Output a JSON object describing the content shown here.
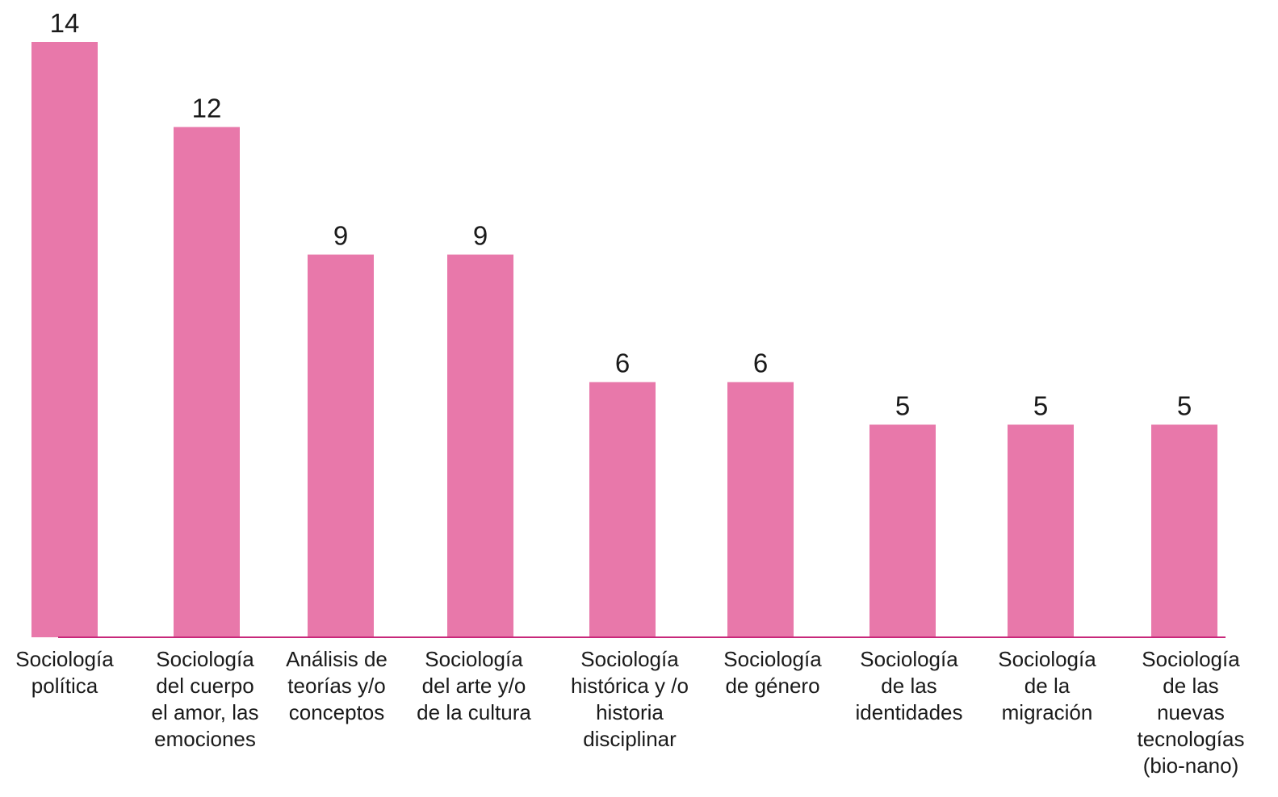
{
  "chart_data": {
    "type": "bar",
    "title": "",
    "xlabel": "",
    "ylabel": "",
    "ylim": [
      0,
      14
    ],
    "grid": false,
    "legend": "none",
    "bar_color": "#e878aa",
    "axis_color": "#c8287a",
    "categories": [
      [
        "Sociología",
        "política"
      ],
      [
        "Sociología",
        "del cuerpo",
        "el amor, las",
        "emociones"
      ],
      [
        "Análisis de",
        "teorías y/o",
        "conceptos"
      ],
      [
        "Sociología",
        "del arte y/o",
        "de la cultura"
      ],
      [
        "Sociología",
        "histórica y /o",
        "historia",
        "disciplinar"
      ],
      [
        "Sociología",
        "de género"
      ],
      [
        "Sociología",
        "de las",
        "identidades"
      ],
      [
        "Sociología",
        "de la",
        "migración"
      ],
      [
        "Sociología",
        "de las",
        "nuevas",
        "tecnologías",
        "(bio-nano)"
      ]
    ],
    "values": [
      14,
      12,
      9,
      9,
      6,
      6,
      5,
      5,
      5
    ],
    "value_labels": [
      "14",
      "12",
      "9",
      "9",
      "6",
      "6",
      "5",
      "5",
      "5"
    ]
  }
}
